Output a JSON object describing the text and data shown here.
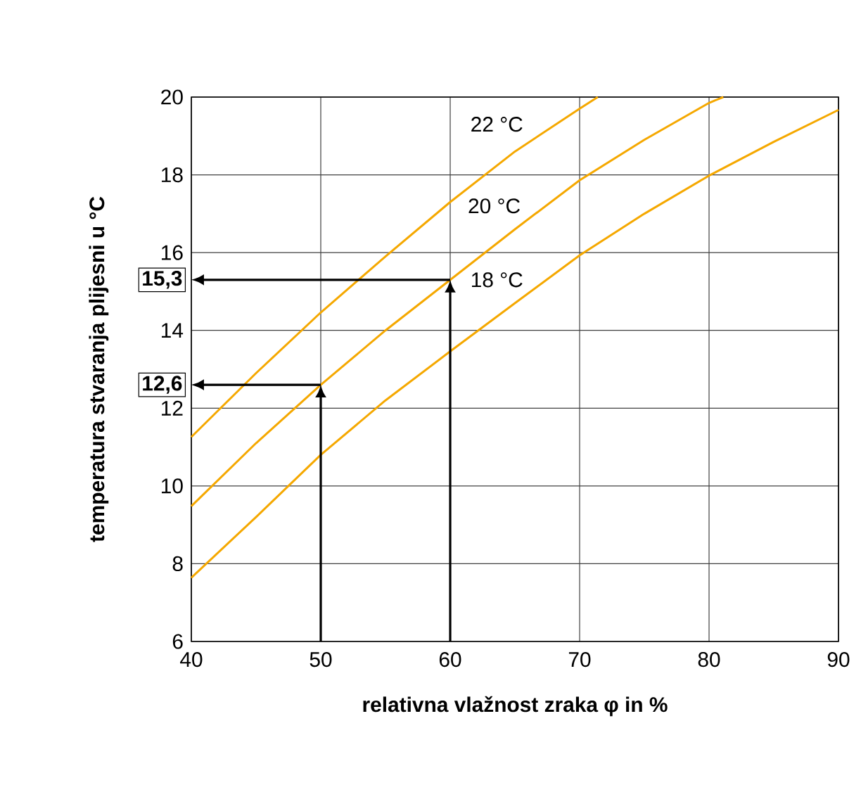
{
  "chart_data": {
    "type": "line",
    "xlabel": "relativna vlažnost zraka φ in %",
    "ylabel": "temperatura stvaranja plijesni u °C",
    "xlim": [
      40,
      90
    ],
    "ylim": [
      6,
      20
    ],
    "xticks": [
      40,
      50,
      60,
      70,
      80,
      90
    ],
    "yticks": [
      6,
      8,
      10,
      12,
      14,
      16,
      18,
      20
    ],
    "grid": true,
    "marker": "none",
    "line_style": "solid",
    "series": [
      {
        "color": "#f5a800",
        "x": [
          40,
          45,
          50,
          55,
          60,
          65,
          70,
          71.4
        ],
        "values": [
          11.26,
          12.9,
          14.46,
          15.9,
          17.3,
          18.6,
          19.7,
          20
        ]
      },
      {
        "color": "#f5a800",
        "x": [
          40,
          45,
          50,
          55,
          60,
          65,
          70,
          75,
          80,
          81.1
        ],
        "values": [
          9.48,
          11.1,
          12.6,
          14.0,
          15.3,
          16.6,
          17.86,
          18.9,
          19.85,
          20
        ]
      },
      {
        "color": "#f5a800",
        "x": [
          40,
          45,
          50,
          55,
          60,
          65,
          70,
          75,
          80,
          85,
          90
        ],
        "values": [
          7.64,
          9.2,
          10.8,
          12.2,
          13.46,
          14.7,
          15.93,
          17.0,
          17.98,
          18.85,
          19.67
        ]
      }
    ],
    "annotations": [
      {
        "text": "22 °C",
        "x": 63.6,
        "y": 19.3
      },
      {
        "text": "20 °C",
        "x": 63.4,
        "y": 17.2
      },
      {
        "text": "18 °C",
        "x": 63.6,
        "y": 15.3
      },
      {
        "text": "15,3",
        "x": 60,
        "y": 15.3
      },
      {
        "text": "12,6",
        "x": 50,
        "y": 12.6
      }
    ]
  }
}
